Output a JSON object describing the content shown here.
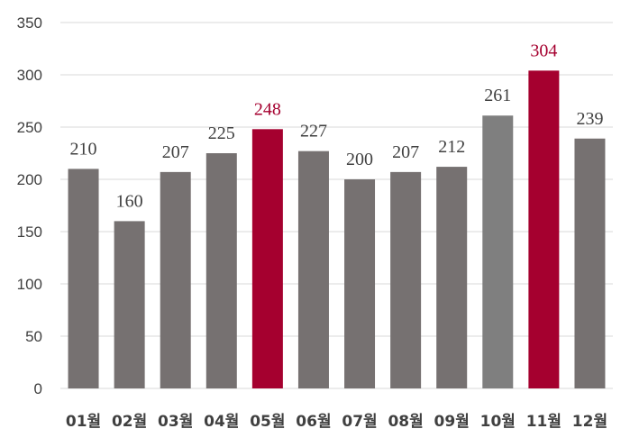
{
  "chart_data": {
    "type": "bar",
    "categories": [
      "01월",
      "02월",
      "03월",
      "04월",
      "05월",
      "06월",
      "07월",
      "08월",
      "09월",
      "10월",
      "11월",
      "12월"
    ],
    "values": [
      210,
      160,
      207,
      225,
      248,
      227,
      200,
      207,
      212,
      261,
      304,
      239
    ],
    "data_labels": [
      "210",
      "160",
      "207",
      "225",
      "248",
      "227",
      "200",
      "207",
      "212",
      "261",
      "304",
      "239"
    ],
    "bar_colors": [
      "#767171",
      "#767171",
      "#767171",
      "#767171",
      "#a5002f",
      "#767171",
      "#767171",
      "#767171",
      "#767171",
      "#7f7f7f",
      "#a5002f",
      "#767171"
    ],
    "label_colors": [
      "#404040",
      "#404040",
      "#404040",
      "#404040",
      "#a5002f",
      "#404040",
      "#404040",
      "#404040",
      "#404040",
      "#404040",
      "#a5002f",
      "#404040"
    ],
    "ylim": [
      0,
      350
    ],
    "yticks": [
      "0",
      "50",
      "100",
      "150",
      "200",
      "250",
      "300",
      "350"
    ],
    "grid": true,
    "title": "",
    "xlabel": "",
    "ylabel": ""
  }
}
